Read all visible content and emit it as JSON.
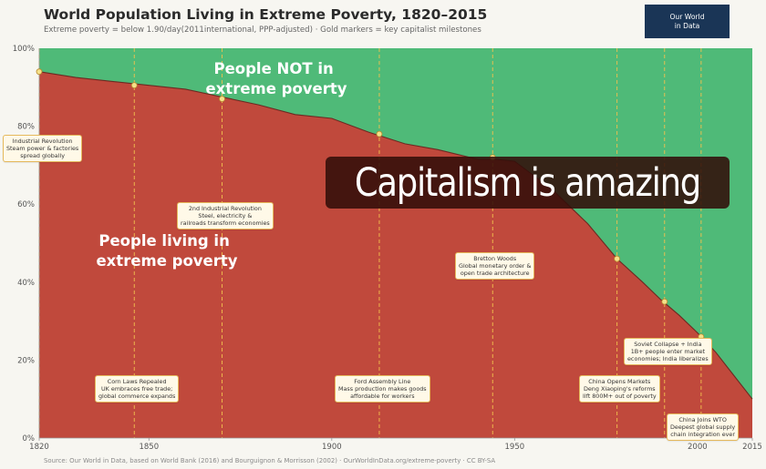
{
  "header": {
    "title": "World Population Living in Extreme Poverty, 1820–2015",
    "subtitle": "Extreme poverty = below 1.90/day(2011international, PPP-adjusted)  ·  Gold markers = key capitalist milestones"
  },
  "logo": {
    "line1": "Our World",
    "line2": "in Data"
  },
  "overlay": {
    "text": "Capitalism is amazing"
  },
  "footer": {
    "source": "Source: Our World in Data, based on World Bank (2016) and Bourguignon & Morrisson (2002)  ·  OurWorldInData.org/extreme-poverty  ·  CC BY-SA"
  },
  "colors": {
    "poverty": "#c0493c",
    "not_poverty": "#4fba78",
    "milestone_line": "#f2c14e",
    "marker": "#f5e08a"
  },
  "chart_data": {
    "type": "area",
    "title": "World Population Living in Extreme Poverty, 1820–2015",
    "xlim": [
      1820,
      2015
    ],
    "ylim": [
      0,
      100
    ],
    "x_ticks": [
      "1820",
      "1850",
      "1900",
      "1950",
      "2000",
      "2015"
    ],
    "y_ticks": [
      "0%",
      "20%",
      "40%",
      "60%",
      "80%",
      "100%"
    ],
    "grid": false,
    "series": [
      {
        "name": "People living in extreme poverty",
        "x": [
          1820,
          1830,
          1840,
          1850,
          1860,
          1870,
          1880,
          1890,
          1900,
          1910,
          1920,
          1929,
          1940,
          1945,
          1950,
          1960,
          1970,
          1978,
          1985,
          1990,
          1995,
          2000,
          2005,
          2010,
          2015
        ],
        "values": [
          94,
          92.5,
          91.5,
          90.5,
          89.5,
          87.5,
          85.5,
          83,
          82,
          78.5,
          75.5,
          74,
          71.5,
          71.5,
          71,
          64,
          55,
          46,
          40,
          35.5,
          31.5,
          27,
          22,
          16,
          10
        ]
      },
      {
        "name": "People NOT in extreme poverty",
        "x": [
          1820,
          2015
        ],
        "values": [
          6,
          90
        ]
      }
    ],
    "annotations": [
      {
        "label": "People NOT in extreme poverty"
      },
      {
        "label": "People living in extreme poverty"
      }
    ],
    "milestones": [
      {
        "year": 1820,
        "label": "Industrial Revolution\nSteam power & factories\nspread globally",
        "value": 94
      },
      {
        "year": 1846,
        "label": "Corn Laws Repealed\nUK embraces free trade;\nglobal commerce expands",
        "value": 90.5
      },
      {
        "year": 1870,
        "label": "2nd Industrial Revolution\nSteel, electricity &\nrailroads transform economies",
        "value": 87
      },
      {
        "year": 1913,
        "label": "Ford Assembly Line\nMass production makes goods\naffordable for workers",
        "value": 78
      },
      {
        "year": 1944,
        "label": "Bretton Woods\nGlobal monetary order &\nopen trade architecture",
        "value": 72
      },
      {
        "year": 1978,
        "label": "China Opens Markets\nDeng Xiaoping's reforms\nlift 800M+ out of poverty",
        "value": 46
      },
      {
        "year": 1991,
        "label": "Soviet Collapse + India\n1B+ people enter market\neconomies; India liberalizes",
        "value": 35
      },
      {
        "year": 2001,
        "label": "China Joins WTO\nDeepest global supply\nchain integration ever",
        "value": 26
      }
    ]
  }
}
